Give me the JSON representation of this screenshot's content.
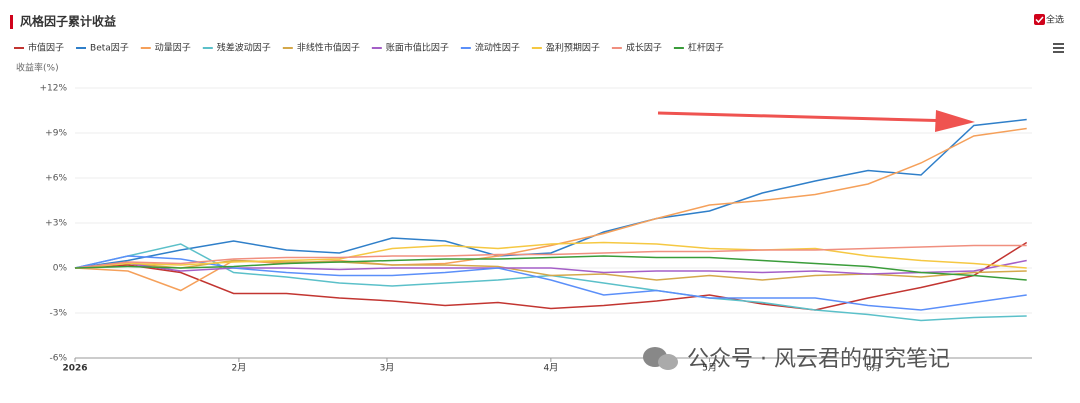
{
  "chart_data": {
    "type": "line",
    "title": "风格因子累计收益",
    "select_all": "全选",
    "y_label": "收益率(%)",
    "watermark": "公众号 · 风云君的研究笔记",
    "x": [
      0,
      10,
      20,
      30,
      40,
      50,
      60,
      70,
      80,
      90,
      100,
      110,
      120,
      130,
      140,
      150,
      160,
      170,
      180
    ],
    "xlim": [
      0,
      181
    ],
    "xticks": [
      {
        "value": 0,
        "label": "2026"
      },
      {
        "value": 31,
        "label": "2月"
      },
      {
        "value": 59,
        "label": "3月"
      },
      {
        "value": 90,
        "label": "4月"
      },
      {
        "value": 120,
        "label": "5月"
      },
      {
        "value": 151,
        "label": "6月"
      }
    ],
    "ylim": [
      -6,
      12
    ],
    "yticks": [
      {
        "value": -6,
        "label": "-6%"
      },
      {
        "value": -3,
        "label": "-3%"
      },
      {
        "value": 0,
        "label": "0%"
      },
      {
        "value": 3,
        "label": "+3%"
      },
      {
        "value": 6,
        "label": "+6%"
      },
      {
        "value": 9,
        "label": "+9%"
      },
      {
        "value": 12,
        "label": "+12%"
      }
    ],
    "grid": true,
    "series": [
      {
        "name": "市值因子",
        "color": "#c23531",
        "values": [
          0,
          0.2,
          -0.3,
          -1.7,
          -1.7,
          -2.0,
          -2.2,
          -2.5,
          -2.3,
          -2.7,
          -2.5,
          -2.2,
          -1.8,
          -2.4,
          -2.8,
          -2.0,
          -1.3,
          -0.5,
          1.7
        ]
      },
      {
        "name": "Beta因子",
        "color": "#2f7fc9",
        "values": [
          0,
          0.5,
          1.2,
          1.8,
          1.2,
          1.0,
          2.0,
          1.8,
          0.8,
          1.0,
          2.4,
          3.3,
          3.8,
          5.0,
          5.8,
          6.5,
          6.2,
          9.5,
          9.9
        ]
      },
      {
        "name": "动量因子",
        "color": "#f5a05a",
        "values": [
          0,
          -0.2,
          -1.5,
          0.5,
          0.3,
          0.5,
          0.2,
          0.3,
          0.8,
          1.5,
          2.3,
          3.3,
          4.2,
          4.5,
          4.9,
          5.6,
          7.0,
          8.8,
          9.3
        ]
      },
      {
        "name": "残差波动因子",
        "color": "#5bc0c9",
        "values": [
          0,
          0.8,
          1.6,
          -0.3,
          -0.6,
          -1.0,
          -1.2,
          -1.0,
          -0.8,
          -0.5,
          -1.0,
          -1.5,
          -2.0,
          -2.3,
          -2.8,
          -3.1,
          -3.5,
          -3.3,
          -3.2
        ]
      },
      {
        "name": "非线性市值因子",
        "color": "#d4a84a",
        "values": [
          0,
          0.3,
          0,
          0.5,
          0.4,
          0.4,
          0.2,
          0.2,
          0.1,
          -0.5,
          -0.4,
          -0.8,
          -0.5,
          -0.8,
          -0.5,
          -0.4,
          -0.6,
          -0.3,
          -0.2
        ]
      },
      {
        "name": "账面市值比因子",
        "color": "#a45fc7",
        "values": [
          0,
          0.3,
          -0.2,
          0,
          0,
          -0.1,
          0,
          0,
          0,
          0,
          -0.3,
          -0.2,
          -0.2,
          -0.3,
          -0.2,
          -0.4,
          -0.3,
          -0.2,
          0.5
        ]
      },
      {
        "name": "流动性因子",
        "color": "#5b8ff9",
        "values": [
          0,
          0.8,
          0.6,
          0,
          -0.3,
          -0.5,
          -0.5,
          -0.3,
          0,
          -0.8,
          -1.8,
          -1.5,
          -2.0,
          -2.0,
          -2.0,
          -2.5,
          -2.8,
          -2.3,
          -1.8
        ]
      },
      {
        "name": "盈利预期因子",
        "color": "#f5c842",
        "values": [
          0,
          0.3,
          0.2,
          0.4,
          0.5,
          0.6,
          1.3,
          1.5,
          1.3,
          1.6,
          1.7,
          1.6,
          1.3,
          1.2,
          1.3,
          0.8,
          0.5,
          0.3,
          0
        ]
      },
      {
        "name": "成长因子",
        "color": "#f08f7f",
        "values": [
          0,
          0.4,
          0.3,
          0.6,
          0.7,
          0.7,
          0.8,
          0.8,
          0.9,
          0.9,
          1.0,
          1.1,
          1.1,
          1.2,
          1.2,
          1.3,
          1.4,
          1.5,
          1.5
        ]
      },
      {
        "name": "杠杆因子",
        "color": "#3a9c3a",
        "values": [
          0,
          0.1,
          0,
          0.1,
          0.3,
          0.4,
          0.5,
          0.6,
          0.6,
          0.7,
          0.8,
          0.7,
          0.7,
          0.5,
          0.3,
          0.1,
          -0.3,
          -0.5,
          -0.8
        ]
      }
    ]
  }
}
